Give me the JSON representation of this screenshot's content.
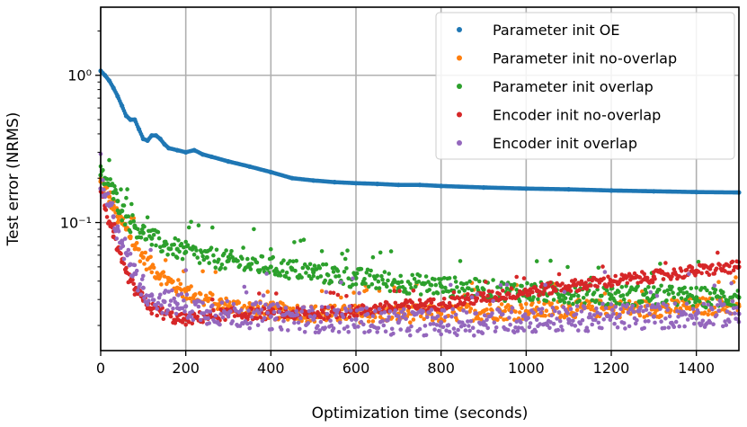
{
  "chart_data": {
    "type": "scatter",
    "xlabel": "Optimization time (seconds)",
    "ylabel": "Test error (NRMS)",
    "xlim": [
      0,
      1500
    ],
    "ylim": [
      0.0135,
      2.9
    ],
    "yscale": "log",
    "grid": true,
    "legend_position": "top-right",
    "x_ticks": [
      0,
      200,
      400,
      600,
      800,
      1000,
      1200,
      1400
    ],
    "x_tick_labels": [
      "0",
      "200",
      "400",
      "600",
      "800",
      "1000",
      "1200",
      "1400"
    ],
    "y_ticks": [
      1,
      0.1
    ],
    "y_tick_labels": [
      "10⁰",
      "10⁻¹"
    ],
    "series": [
      {
        "name": "Parameter init OE",
        "color": "#1f77b4",
        "x": [
          0,
          10,
          20,
          30,
          40,
          50,
          60,
          70,
          80,
          90,
          100,
          110,
          120,
          130,
          140,
          150,
          160,
          180,
          200,
          220,
          240,
          260,
          300,
          350,
          400,
          450,
          500,
          550,
          600,
          650,
          700,
          750,
          800,
          900,
          1000,
          1100,
          1200,
          1300,
          1400,
          1500
        ],
        "y": [
          1.07,
          1.0,
          0.92,
          0.82,
          0.72,
          0.62,
          0.53,
          0.5,
          0.5,
          0.43,
          0.37,
          0.36,
          0.39,
          0.39,
          0.37,
          0.34,
          0.32,
          0.31,
          0.3,
          0.31,
          0.29,
          0.28,
          0.26,
          0.24,
          0.22,
          0.2,
          0.193,
          0.188,
          0.185,
          0.183,
          0.18,
          0.18,
          0.177,
          0.173,
          0.17,
          0.168,
          0.165,
          0.163,
          0.161,
          0.16
        ],
        "noise": 0.0
      },
      {
        "name": "Parameter init no-overlap",
        "color": "#ff7f0e",
        "x": [
          0,
          10,
          20,
          30,
          40,
          50,
          60,
          70,
          80,
          100,
          120,
          140,
          160,
          180,
          200,
          220,
          250,
          280,
          300,
          350,
          400,
          450,
          500,
          600,
          700,
          800,
          900,
          1000,
          1100,
          1200,
          1300,
          1400,
          1500
        ],
        "y": [
          0.19,
          0.17,
          0.15,
          0.13,
          0.11,
          0.1,
          0.09,
          0.08,
          0.07,
          0.058,
          0.05,
          0.044,
          0.04,
          0.036,
          0.034,
          0.032,
          0.03,
          0.028,
          0.027,
          0.026,
          0.025,
          0.025,
          0.024,
          0.024,
          0.024,
          0.024,
          0.025,
          0.025,
          0.026,
          0.026,
          0.026,
          0.027,
          0.027
        ],
        "noise": 0.06
      },
      {
        "name": "Parameter init overlap",
        "color": "#2ca02c",
        "x": [
          0,
          10,
          20,
          30,
          40,
          50,
          60,
          70,
          80,
          100,
          120,
          150,
          180,
          200,
          250,
          300,
          350,
          400,
          450,
          500,
          600,
          700,
          800,
          900,
          1000,
          1100,
          1200,
          1300,
          1400,
          1500
        ],
        "y": [
          0.21,
          0.2,
          0.18,
          0.16,
          0.14,
          0.12,
          0.11,
          0.1,
          0.095,
          0.085,
          0.078,
          0.07,
          0.066,
          0.063,
          0.058,
          0.055,
          0.052,
          0.05,
          0.048,
          0.046,
          0.042,
          0.039,
          0.037,
          0.035,
          0.034,
          0.033,
          0.032,
          0.032,
          0.031,
          0.031
        ],
        "noise": 0.07
      },
      {
        "name": "Encoder init no-overlap",
        "color": "#d62728",
        "x": [
          0,
          10,
          20,
          30,
          40,
          50,
          60,
          70,
          80,
          100,
          120,
          150,
          180,
          200,
          250,
          300,
          400,
          500,
          600,
          700,
          800,
          900,
          1000,
          1100,
          1200,
          1300,
          1400,
          1500
        ],
        "y": [
          0.17,
          0.13,
          0.1,
          0.08,
          0.065,
          0.054,
          0.046,
          0.04,
          0.035,
          0.03,
          0.026,
          0.024,
          0.022,
          0.022,
          0.023,
          0.024,
          0.024,
          0.024,
          0.025,
          0.027,
          0.028,
          0.031,
          0.034,
          0.037,
          0.04,
          0.043,
          0.047,
          0.05
        ],
        "noise": 0.04
      },
      {
        "name": "Encoder init overlap",
        "color": "#9467bd",
        "x": [
          0,
          10,
          20,
          30,
          40,
          50,
          60,
          70,
          80,
          100,
          120,
          150,
          180,
          200,
          250,
          300,
          400,
          500,
          600,
          700,
          800,
          900,
          1000,
          1100,
          1200,
          1300,
          1400,
          1500
        ],
        "y": [
          0.17,
          0.15,
          0.13,
          0.11,
          0.09,
          0.075,
          0.062,
          0.052,
          0.045,
          0.036,
          0.032,
          0.029,
          0.028,
          0.027,
          0.025,
          0.024,
          0.023,
          0.022,
          0.022,
          0.021,
          0.021,
          0.021,
          0.022,
          0.022,
          0.023,
          0.023,
          0.024,
          0.024
        ],
        "noise": 0.09
      }
    ]
  }
}
